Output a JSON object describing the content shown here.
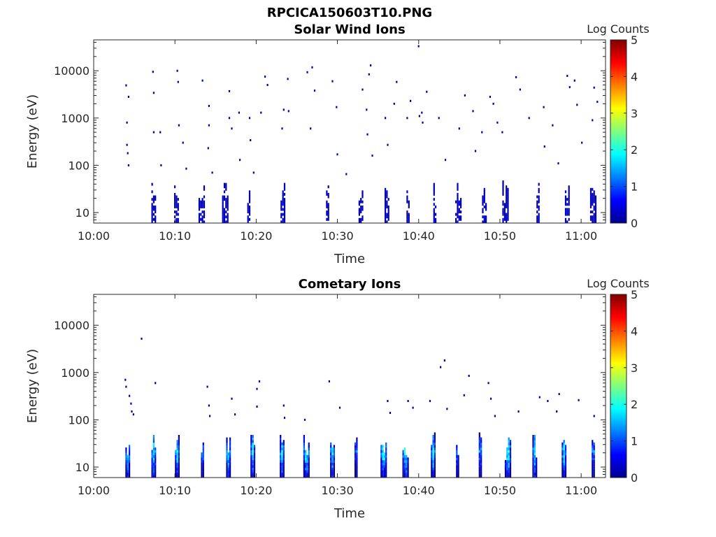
{
  "figure_title": "RPCICA150603T10.PNG",
  "colorbar": {
    "label": "Log Counts",
    "min": 0,
    "max": 5,
    "ticks": [
      "0",
      "1",
      "2",
      "3",
      "4",
      "5"
    ],
    "colormap": "jet"
  },
  "chart_data": [
    {
      "type": "heatmap",
      "title": "Solar Wind Ions",
      "xlabel": "Time",
      "ylabel": "Energy (eV)",
      "x_tick_labels": [
        "10:00",
        "10:10",
        "10:20",
        "10:30",
        "10:40",
        "10:50",
        "11:00"
      ],
      "y_tick_labels": [
        "10",
        "100",
        "1000",
        "10000"
      ],
      "yscale": "log",
      "xlim": [
        "10:00",
        "11:03"
      ],
      "ylim": [
        6,
        45000
      ],
      "colorbar_label": "Log Counts",
      "bursts_time_min": [
        7.1,
        9.9,
        12.9,
        15.8,
        18.9,
        23.0,
        28.6,
        32.6,
        35.8,
        38.5,
        41.8,
        44.5,
        47.8,
        50.3,
        54.5,
        58.0,
        61.1
      ],
      "low_energy_band_eV": [
        6,
        45
      ],
      "scattered_high_energy_points": [
        {
          "t": 3.9,
          "e": 4900
        },
        {
          "t": 4.0,
          "e": 800
        },
        {
          "t": 4.2,
          "e": 2800
        },
        {
          "t": 4.0,
          "e": 270
        },
        {
          "t": 4.1,
          "e": 180
        },
        {
          "t": 4.2,
          "e": 100
        },
        {
          "t": 7.2,
          "e": 9500
        },
        {
          "t": 7.3,
          "e": 3400
        },
        {
          "t": 7.3,
          "e": 500
        },
        {
          "t": 8.1,
          "e": 500
        },
        {
          "t": 8.2,
          "e": 100
        },
        {
          "t": 10.2,
          "e": 10000
        },
        {
          "t": 10.3,
          "e": 5800
        },
        {
          "t": 10.4,
          "e": 700
        },
        {
          "t": 10.9,
          "e": 300
        },
        {
          "t": 11.3,
          "e": 85
        },
        {
          "t": 13.3,
          "e": 6200
        },
        {
          "t": 14.1,
          "e": 1800
        },
        {
          "t": 14.1,
          "e": 700
        },
        {
          "t": 14.0,
          "e": 230
        },
        {
          "t": 14.5,
          "e": 70
        },
        {
          "t": 16.6,
          "e": 3700
        },
        {
          "t": 16.6,
          "e": 1000
        },
        {
          "t": 16.9,
          "e": 600
        },
        {
          "t": 17.8,
          "e": 1300
        },
        {
          "t": 17.9,
          "e": 130
        },
        {
          "t": 19.1,
          "e": 1000
        },
        {
          "t": 19.2,
          "e": 340
        },
        {
          "t": 19.6,
          "e": 70
        },
        {
          "t": 20.5,
          "e": 1300
        },
        {
          "t": 21.0,
          "e": 7500
        },
        {
          "t": 21.3,
          "e": 5000
        },
        {
          "t": 23.1,
          "e": 600
        },
        {
          "t": 23.3,
          "e": 1500
        },
        {
          "t": 23.8,
          "e": 6700
        },
        {
          "t": 23.9,
          "e": 1400
        },
        {
          "t": 26.2,
          "e": 9300
        },
        {
          "t": 26.8,
          "e": 11800
        },
        {
          "t": 27.1,
          "e": 3800
        },
        {
          "t": 26.6,
          "e": 600
        },
        {
          "t": 29.3,
          "e": 6000
        },
        {
          "t": 29.8,
          "e": 1700
        },
        {
          "t": 29.9,
          "e": 170
        },
        {
          "t": 31.0,
          "e": 65
        },
        {
          "t": 33.0,
          "e": 4000
        },
        {
          "t": 33.5,
          "e": 1500
        },
        {
          "t": 33.6,
          "e": 450
        },
        {
          "t": 33.8,
          "e": 8400
        },
        {
          "t": 34.0,
          "e": 13000
        },
        {
          "t": 34.2,
          "e": 160
        },
        {
          "t": 35.8,
          "e": 1000
        },
        {
          "t": 36.1,
          "e": 270
        },
        {
          "t": 36.9,
          "e": 2000
        },
        {
          "t": 37.2,
          "e": 5800
        },
        {
          "t": 38.5,
          "e": 1000
        },
        {
          "t": 38.9,
          "e": 2300
        },
        {
          "t": 39.9,
          "e": 33000
        },
        {
          "t": 40.0,
          "e": 1100
        },
        {
          "t": 40.3,
          "e": 1300
        },
        {
          "t": 40.4,
          "e": 800
        },
        {
          "t": 40.9,
          "e": 3600
        },
        {
          "t": 42.4,
          "e": 1000
        },
        {
          "t": 43.2,
          "e": 130
        },
        {
          "t": 44.9,
          "e": 600
        },
        {
          "t": 45.6,
          "e": 3000
        },
        {
          "t": 46.6,
          "e": 1400
        },
        {
          "t": 46.9,
          "e": 200
        },
        {
          "t": 47.7,
          "e": 500
        },
        {
          "t": 48.7,
          "e": 2800
        },
        {
          "t": 49.1,
          "e": 2000
        },
        {
          "t": 49.6,
          "e": 800
        },
        {
          "t": 50.2,
          "e": 500
        },
        {
          "t": 51.9,
          "e": 7300
        },
        {
          "t": 52.4,
          "e": 4000
        },
        {
          "t": 53.5,
          "e": 1000
        },
        {
          "t": 55.3,
          "e": 1700
        },
        {
          "t": 55.4,
          "e": 250
        },
        {
          "t": 56.4,
          "e": 700
        },
        {
          "t": 57.1,
          "e": 110
        },
        {
          "t": 58.2,
          "e": 7800
        },
        {
          "t": 58.5,
          "e": 4500
        },
        {
          "t": 59.1,
          "e": 6200
        },
        {
          "t": 59.4,
          "e": 1900
        },
        {
          "t": 60.0,
          "e": 300
        },
        {
          "t": 61.3,
          "e": 900
        },
        {
          "t": 61.5,
          "e": 4400
        },
        {
          "t": 61.9,
          "e": 2200
        }
      ]
    },
    {
      "type": "heatmap",
      "title": "Cometary Ions",
      "xlabel": "Time",
      "ylabel": "Energy (eV)",
      "x_tick_labels": [
        "10:00",
        "10:10",
        "10:20",
        "10:30",
        "10:40",
        "10:50",
        "11:00"
      ],
      "y_tick_labels": [
        "10",
        "100",
        "1000",
        "10000"
      ],
      "yscale": "log",
      "xlim": [
        "10:00",
        "11:03"
      ],
      "ylim": [
        6,
        45000
      ],
      "colorbar_label": "Log Counts",
      "bursts_time_min": [
        3.9,
        7.1,
        10.0,
        13.2,
        16.3,
        19.3,
        22.9,
        25.8,
        29.1,
        32.1,
        35.3,
        38.0,
        41.5,
        44.6,
        47.4,
        50.6,
        54.0,
        57.6,
        61.3
      ],
      "low_energy_band_eV": [
        6,
        45
      ],
      "peak_log_counts_near_eV": 20,
      "peak_log_counts": 2.4,
      "scattered_high_energy_points": [
        {
          "t": 3.8,
          "e": 700
        },
        {
          "t": 3.9,
          "e": 500
        },
        {
          "t": 4.3,
          "e": 320
        },
        {
          "t": 4.5,
          "e": 220
        },
        {
          "t": 4.6,
          "e": 150
        },
        {
          "t": 4.8,
          "e": 130
        },
        {
          "t": 5.8,
          "e": 5200
        },
        {
          "t": 7.5,
          "e": 600
        },
        {
          "t": 13.9,
          "e": 500
        },
        {
          "t": 14.1,
          "e": 200
        },
        {
          "t": 14.2,
          "e": 120
        },
        {
          "t": 16.9,
          "e": 280
        },
        {
          "t": 17.3,
          "e": 130
        },
        {
          "t": 20.0,
          "e": 450
        },
        {
          "t": 20.3,
          "e": 650
        },
        {
          "t": 20.0,
          "e": 190
        },
        {
          "t": 23.3,
          "e": 200
        },
        {
          "t": 23.4,
          "e": 110
        },
        {
          "t": 25.9,
          "e": 100
        },
        {
          "t": 28.9,
          "e": 650
        },
        {
          "t": 30.2,
          "e": 180
        },
        {
          "t": 36.1,
          "e": 250
        },
        {
          "t": 36.4,
          "e": 140
        },
        {
          "t": 38.6,
          "e": 250
        },
        {
          "t": 39.2,
          "e": 180
        },
        {
          "t": 41.3,
          "e": 250
        },
        {
          "t": 42.6,
          "e": 1300
        },
        {
          "t": 43.1,
          "e": 1800
        },
        {
          "t": 43.4,
          "e": 170
        },
        {
          "t": 45.5,
          "e": 330
        },
        {
          "t": 46.1,
          "e": 850
        },
        {
          "t": 48.5,
          "e": 600
        },
        {
          "t": 48.8,
          "e": 280
        },
        {
          "t": 49.3,
          "e": 120
        },
        {
          "t": 52.2,
          "e": 150
        },
        {
          "t": 54.8,
          "e": 300
        },
        {
          "t": 55.8,
          "e": 250
        },
        {
          "t": 56.9,
          "e": 150
        },
        {
          "t": 57.2,
          "e": 350
        },
        {
          "t": 59.6,
          "e": 260
        },
        {
          "t": 61.5,
          "e": 120
        }
      ]
    }
  ]
}
